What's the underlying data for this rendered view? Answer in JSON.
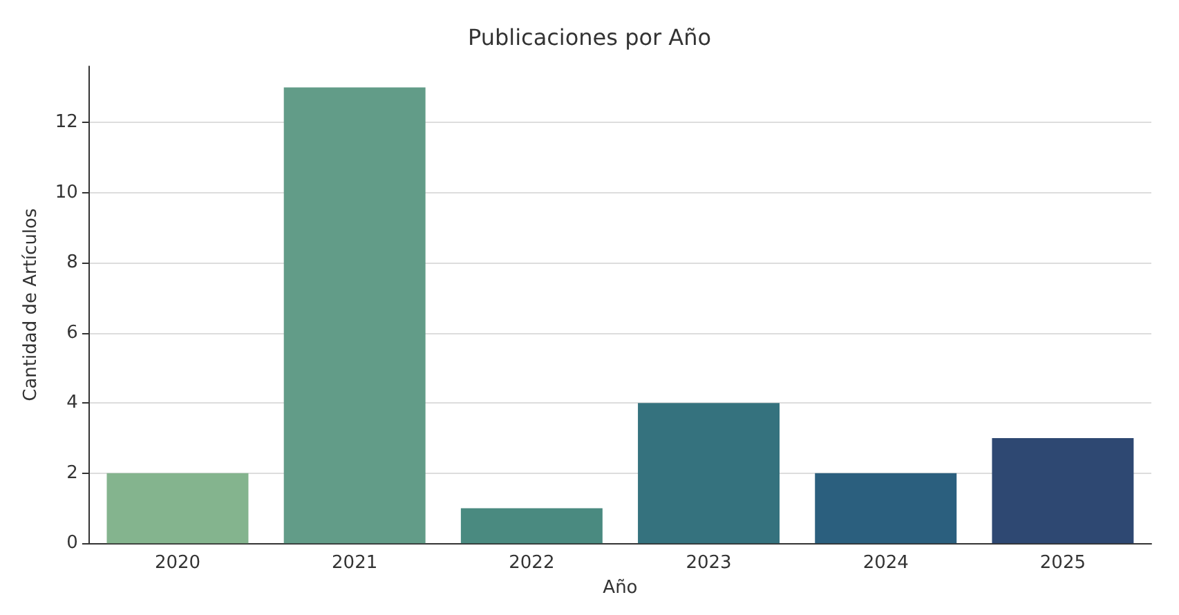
{
  "chart_data": {
    "type": "bar",
    "title": "Publicaciones por Año",
    "xlabel": "Año",
    "ylabel": "Cantidad de Artículos",
    "categories": [
      "2020",
      "2021",
      "2022",
      "2023",
      "2024",
      "2025"
    ],
    "values": [
      2,
      13,
      1,
      4,
      2,
      3
    ],
    "colors": [
      "#84b48e",
      "#629c88",
      "#4a8a80",
      "#35727e",
      "#2b5f7e",
      "#2e4872"
    ],
    "ylim": [
      0,
      13.6
    ],
    "yticks": [
      0,
      2,
      4,
      6,
      8,
      10,
      12
    ],
    "grid": "y"
  }
}
